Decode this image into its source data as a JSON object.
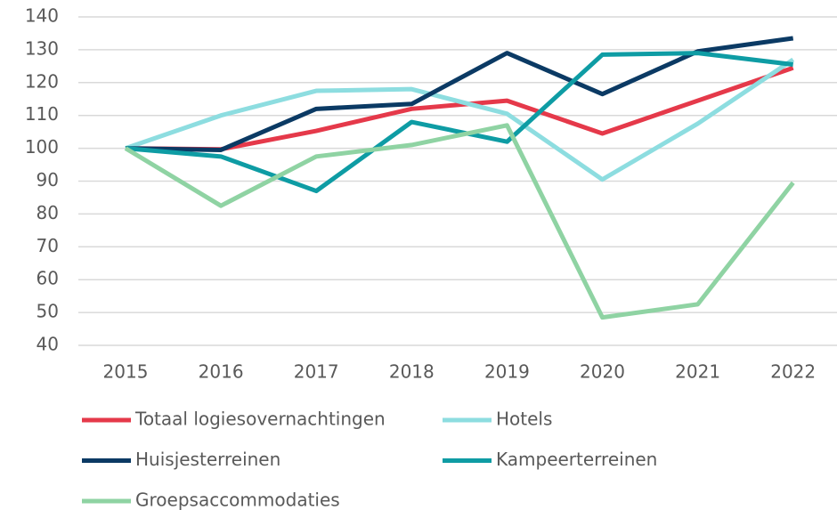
{
  "chart_data": {
    "type": "line",
    "categories": [
      "2015",
      "2016",
      "2017",
      "2018",
      "2019",
      "2020",
      "2021",
      "2022"
    ],
    "series": [
      {
        "name": "Totaal logiesovernachtingen",
        "color": "#e5394a",
        "values": [
          100,
          99.7,
          105.3,
          112,
          114.5,
          104.5,
          114.5,
          124.5
        ]
      },
      {
        "name": "Hotels",
        "color": "#8ddde0",
        "values": [
          100,
          110,
          117.5,
          118,
          110.5,
          90.5,
          107.5,
          127
        ]
      },
      {
        "name": "Huisjesterreinen",
        "color": "#0b3a64",
        "values": [
          100,
          99.5,
          112,
          113.5,
          129,
          116.5,
          129.5,
          133.5
        ]
      },
      {
        "name": "Kampeerterreinen",
        "color": "#0e9ca4",
        "values": [
          100,
          97.5,
          87,
          108,
          102,
          128.5,
          129,
          125.5
        ]
      },
      {
        "name": "Groepsaccommodaties",
        "color": "#8fd3a3",
        "values": [
          100,
          82.5,
          97.5,
          101,
          107,
          48.5,
          52.5,
          89.5
        ]
      }
    ],
    "ylim": [
      40,
      140
    ],
    "yticks": [
      40,
      50,
      60,
      70,
      80,
      90,
      100,
      110,
      120,
      130,
      140
    ],
    "grid": true,
    "legend": "bottom"
  }
}
